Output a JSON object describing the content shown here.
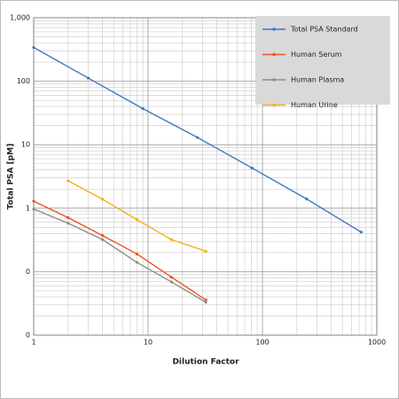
{
  "chart_data": {
    "type": "line",
    "xlabel": "Dilution Factor",
    "ylabel": "Total PSA [pM]",
    "xscale": "log",
    "yscale": "log",
    "grid": true,
    "minor_grid": true,
    "legend": "upper right",
    "xlim": [
      1,
      1000
    ],
    "xticks": [
      1,
      10,
      100,
      1000
    ],
    "ylim": [
      0.01,
      1000
    ],
    "yticks": [
      {
        "value": 0.01,
        "label": "0"
      },
      {
        "value": 0.1,
        "label": "0"
      },
      1,
      10,
      100,
      {
        "value": 1000,
        "label": "1,000"
      }
    ],
    "series": [
      {
        "name": "Total PSA Standard",
        "color": "#3a78c2",
        "x": [
          1,
          3,
          9,
          27,
          81,
          243,
          729
        ],
        "values": [
          340,
          112,
          37,
          13,
          4.3,
          1.4,
          0.42
        ]
      },
      {
        "name": "Human Serum",
        "color": "#e8541c",
        "x": [
          1,
          2,
          4,
          8,
          16,
          32
        ],
        "values": [
          1.29,
          0.71,
          0.37,
          0.19,
          0.082,
          0.036
        ]
      },
      {
        "name": "Human Plasma",
        "color": "#8c8c8c",
        "x": [
          1,
          2,
          4,
          8,
          16,
          32
        ],
        "values": [
          0.97,
          0.58,
          0.32,
          0.14,
          0.069,
          0.033
        ]
      },
      {
        "name": "Human Urine",
        "color": "#f2b21b",
        "x": [
          2,
          4,
          8,
          16,
          32
        ],
        "values": [
          2.7,
          1.38,
          0.66,
          0.32,
          0.21
        ]
      }
    ]
  }
}
